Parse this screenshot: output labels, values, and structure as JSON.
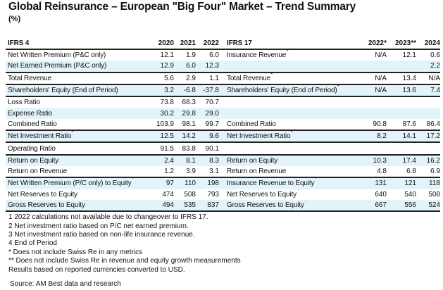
{
  "title": "Global Reinsurance – European \"Big Four\" Market – Trend Summary",
  "unit": "(%)",
  "left_header": {
    "label": "IFRS 4",
    "years": [
      "2020",
      "2021",
      "2022"
    ]
  },
  "right_header": {
    "label": "IFRS 17",
    "years": [
      "2022*",
      "2023**",
      "2024"
    ]
  },
  "rows": [
    {
      "left": "Net Written Premium (P&C only)",
      "lsup": "",
      "lv": [
        "12.1",
        "1.9",
        "6.0"
      ],
      "right": "Insurance Revenue",
      "rsup": "1",
      "rv": [
        "N/A",
        "12.1",
        "0.6"
      ]
    },
    {
      "left": "Net Earned Premium (P&C only)",
      "lsup": "",
      "lv": [
        "12.9",
        "6.0",
        "12.3"
      ],
      "right": "",
      "rsup": "",
      "rv": [
        "",
        "",
        "2.2"
      ]
    },
    {
      "left": "Total Revenue",
      "lsup": "",
      "lv": [
        "5.6",
        "2.9",
        "1.1"
      ],
      "right": "Total Revenue",
      "rsup": "1",
      "rv": [
        "N/A",
        "13.4",
        "N/A"
      ]
    },
    {
      "left": "Shareholders' Equity (End of Period)",
      "lsup": "",
      "lv": [
        "3.2",
        "-6.8",
        "-37.8"
      ],
      "right": "Shareholders' Equity (End of Period)",
      "rsup": "1",
      "rv": [
        "N/A",
        "13.6",
        "7.4"
      ]
    },
    {
      "left": "Loss Ratio",
      "lsup": "",
      "lv": [
        "73.8",
        "68.3",
        "70.7"
      ],
      "right": "",
      "rsup": "",
      "rv": [
        "",
        "",
        ""
      ]
    },
    {
      "left": "Expense Ratio",
      "lsup": "",
      "lv": [
        "30.2",
        "29.8",
        "29.0"
      ],
      "right": "",
      "rsup": "",
      "rv": [
        "",
        "",
        ""
      ]
    },
    {
      "left": "Combined Ratio",
      "lsup": "",
      "lv": [
        "103.9",
        "98.1",
        "99.7"
      ],
      "right": "Combined Ratio",
      "rsup": "",
      "rv": [
        "90.8",
        "87.6",
        "86.4"
      ]
    },
    {
      "left": "Net Investment Ratio",
      "lsup": "2",
      "lv": [
        "12.5",
        "14.2",
        "9.6"
      ],
      "right": "Net Investment Ratio",
      "rsup": "3",
      "rv": [
        "8.2",
        "14.1",
        "17.2"
      ]
    },
    {
      "left": "Operating Ratio",
      "lsup": "",
      "lv": [
        "91.5",
        "83.8",
        "90.1"
      ],
      "right": "",
      "rsup": "",
      "rv": [
        "",
        "",
        ""
      ]
    },
    {
      "left": "Return on Equity",
      "lsup": "",
      "lv": [
        "2.4",
        "8.1",
        "8.3"
      ],
      "right": "Return on Equity",
      "rsup": "",
      "rv": [
        "10.3",
        "17.4",
        "16.2"
      ]
    },
    {
      "left": "Return on Revenue",
      "lsup": "",
      "lv": [
        "1.2",
        "3.9",
        "3.1"
      ],
      "right": "Return on Revenue",
      "rsup": "",
      "rv": [
        "4.8",
        "6.8",
        "6.9"
      ]
    },
    {
      "left": "Net Written Premium (P/C only) to Equity",
      "lsup": "4",
      "lv": [
        "97",
        "110",
        "198"
      ],
      "right": "Insurance Revenue to Equity",
      "rsup": "4",
      "rv": [
        "131",
        "121",
        "118"
      ]
    },
    {
      "left": "Net Reserves to Equity",
      "lsup": "4",
      "lv": [
        "474",
        "508",
        "793"
      ],
      "right": "Net Reserves to Equity",
      "rsup": "4",
      "rv": [
        "640",
        "540",
        "508"
      ]
    },
    {
      "left": "Gross Reserves to Equity",
      "lsup": "4",
      "lv": [
        "494",
        "535",
        "837"
      ],
      "right": "Gross Reserves to Equity",
      "rsup": "4",
      "rv": [
        "667",
        "556",
        "524"
      ]
    }
  ],
  "footnotes": [
    "1 2022 calculations not available due to changeover to IFRS 17.",
    "2 Net investment ratio based on P/C net earned premium.",
    "3 Net investment ratio based on non-life insurance revenue.",
    "4 End of Period",
    "* Does not include Swiss Re in any metrics",
    "** Does not include Swiss Re in revenue and equity growth measurements",
    "Results based on reported currencies converted to USD."
  ],
  "source": "Source: AM Best data and research",
  "colors": {
    "row_highlight": "#e2f3fa",
    "rule": "#222222"
  }
}
